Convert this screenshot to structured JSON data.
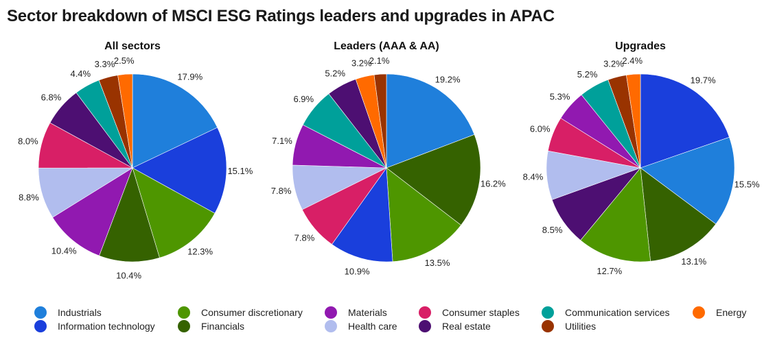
{
  "title": "Sector breakdown of MSCI ESG Ratings leaders and upgrades in APAC",
  "sectors": {
    "industrials": {
      "label": "Industrials",
      "color": "#1f7fdb"
    },
    "info_tech": {
      "label": "Information technology",
      "color": "#1a3fdc"
    },
    "cons_disc": {
      "label": "Consumer discretionary",
      "color": "#4e9600"
    },
    "financials": {
      "label": "Financials",
      "color": "#356200"
    },
    "materials": {
      "label": "Materials",
      "color": "#9119b0"
    },
    "health_care": {
      "label": "Health care",
      "color": "#b1bdee"
    },
    "cons_staples": {
      "label": "Consumer staples",
      "color": "#d81f66"
    },
    "real_estate": {
      "label": "Real estate",
      "color": "#4d0f72"
    },
    "comm_services": {
      "label": "Communication services",
      "color": "#00a09a"
    },
    "utilities": {
      "label": "Utilities",
      "color": "#993300"
    },
    "energy": {
      "label": "Energy",
      "color": "#ff6a00"
    }
  },
  "legend": [
    [
      "industrials",
      "info_tech"
    ],
    [
      "cons_disc",
      "financials"
    ],
    [
      "materials",
      "health_care"
    ],
    [
      "cons_staples",
      "real_estate"
    ],
    [
      "comm_services",
      "utilities"
    ],
    [
      "energy"
    ]
  ],
  "chart_data": [
    {
      "type": "pie",
      "title": "All sectors",
      "slices": [
        {
          "sector": "industrials",
          "value": 17.9,
          "label": "17.9%"
        },
        {
          "sector": "info_tech",
          "value": 15.1,
          "label": "15.1%"
        },
        {
          "sector": "cons_disc",
          "value": 12.3,
          "label": "12.3%"
        },
        {
          "sector": "financials",
          "value": 10.4,
          "label": "10.4%"
        },
        {
          "sector": "materials",
          "value": 10.4,
          "label": "10.4%"
        },
        {
          "sector": "health_care",
          "value": 8.8,
          "label": "8.8%"
        },
        {
          "sector": "cons_staples",
          "value": 8.0,
          "label": "8.0%"
        },
        {
          "sector": "real_estate",
          "value": 6.8,
          "label": "6.8%"
        },
        {
          "sector": "comm_services",
          "value": 4.4,
          "label": "4.4%"
        },
        {
          "sector": "utilities",
          "value": 3.3,
          "label": "3.3%"
        },
        {
          "sector": "energy",
          "value": 2.5,
          "label": "2.5%"
        }
      ]
    },
    {
      "type": "pie",
      "title": "Leaders (AAA & AA)",
      "slices": [
        {
          "sector": "industrials",
          "value": 19.2,
          "label": "19.2%"
        },
        {
          "sector": "financials",
          "value": 16.2,
          "label": "16.2%"
        },
        {
          "sector": "cons_disc",
          "value": 13.5,
          "label": "13.5%"
        },
        {
          "sector": "info_tech",
          "value": 10.9,
          "label": "10.9%"
        },
        {
          "sector": "cons_staples",
          "value": 7.8,
          "label": "7.8%"
        },
        {
          "sector": "health_care",
          "value": 7.8,
          "label": "7.8%"
        },
        {
          "sector": "materials",
          "value": 7.1,
          "label": "7.1%"
        },
        {
          "sector": "comm_services",
          "value": 6.9,
          "label": "6.9%"
        },
        {
          "sector": "real_estate",
          "value": 5.2,
          "label": "5.2%"
        },
        {
          "sector": "energy",
          "value": 3.2,
          "label": "3.2%"
        },
        {
          "sector": "utilities",
          "value": 2.1,
          "label": "2.1%"
        }
      ]
    },
    {
      "type": "pie",
      "title": "Upgrades",
      "slices": [
        {
          "sector": "info_tech",
          "value": 19.7,
          "label": "19.7%"
        },
        {
          "sector": "industrials",
          "value": 15.5,
          "label": "15.5%"
        },
        {
          "sector": "financials",
          "value": 13.1,
          "label": "13.1%"
        },
        {
          "sector": "cons_disc",
          "value": 12.7,
          "label": "12.7%"
        },
        {
          "sector": "real_estate",
          "value": 8.5,
          "label": "8.5%"
        },
        {
          "sector": "health_care",
          "value": 8.4,
          "label": "8.4%"
        },
        {
          "sector": "cons_staples",
          "value": 6.0,
          "label": "6.0%"
        },
        {
          "sector": "materials",
          "value": 5.3,
          "label": "5.3%"
        },
        {
          "sector": "comm_services",
          "value": 5.2,
          "label": "5.2%"
        },
        {
          "sector": "utilities",
          "value": 3.2,
          "label": "3.2%"
        },
        {
          "sector": "energy",
          "value": 2.4,
          "label": "2.4%"
        }
      ]
    }
  ]
}
